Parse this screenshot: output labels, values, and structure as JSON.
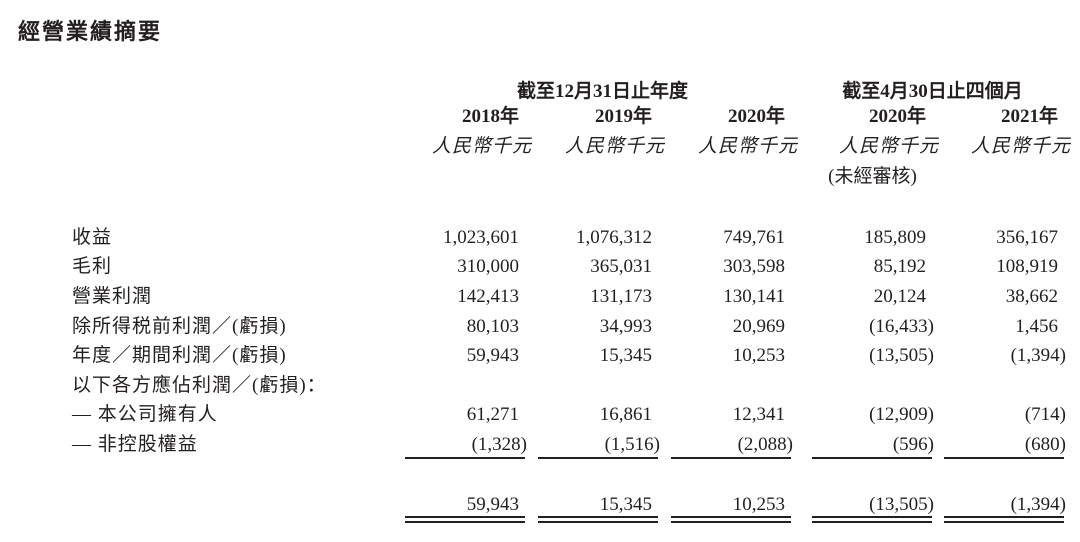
{
  "title": "經營業績摘要",
  "header": {
    "group1": "截至12月31日止年度",
    "group2": "截至4月30日止四個月",
    "years": [
      "2018年",
      "2019年",
      "2020年",
      "2020年",
      "2021年"
    ],
    "units": [
      "人民幣千元",
      "人民幣千元",
      "人民幣千元",
      "人民幣千元",
      "人民幣千元"
    ],
    "unaudited": "(未經審核)"
  },
  "rows": [
    {
      "label": "收益",
      "values": [
        "1,023,601",
        "1,076,312",
        "749,761",
        "185,809",
        "356,167"
      ]
    },
    {
      "label": "毛利",
      "values": [
        "310,000",
        "365,031",
        "303,598",
        "85,192",
        "108,919"
      ]
    },
    {
      "label": "營業利潤",
      "values": [
        "142,413",
        "131,173",
        "130,141",
        "20,124",
        "38,662"
      ]
    },
    {
      "label": "除所得税前利潤／(虧損)",
      "values": [
        "80,103",
        "34,993",
        "20,969",
        "(16,433)",
        "1,456"
      ]
    },
    {
      "label": "年度／期間利潤／(虧損)",
      "values": [
        "59,943",
        "15,345",
        "10,253",
        "(13,505)",
        "(1,394)"
      ]
    },
    {
      "label": "以下各方應佔利潤／(虧損)：",
      "values": [
        "",
        "",
        "",
        "",
        ""
      ]
    },
    {
      "label": "— 本公司擁有人",
      "values": [
        "61,271",
        "16,861",
        "12,341",
        "(12,909)",
        "(714)"
      ]
    },
    {
      "label": "— 非控股權益",
      "values": [
        "(1,328)",
        "(1,516)",
        "(2,088)",
        "(596)",
        "(680)"
      ]
    },
    {
      "label": "",
      "values": [
        "59,943",
        "15,345",
        "10,253",
        "(13,505)",
        "(1,394)"
      ]
    }
  ]
}
